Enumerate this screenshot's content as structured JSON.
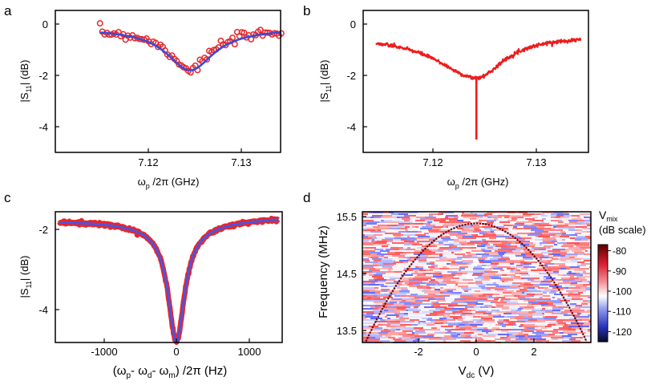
{
  "chart_data": [
    {
      "panel": "a",
      "type": "scatter",
      "xlabel": "ω_p /2π (GHz)",
      "ylabel": "|S_11| (dB)",
      "xlim": [
        7.114,
        7.135
      ],
      "ylim": [
        -5,
        0.2
      ],
      "xticks": [
        7.12,
        7.13
      ],
      "yticks": [
        0,
        -2,
        -4
      ],
      "series": [
        {
          "name": "data",
          "style": "open-circles",
          "color": "#e8262a",
          "dip_center": 7.1245,
          "depth_db": 1.6,
          "baseline_db": -0.25
        },
        {
          "name": "fit",
          "style": "line",
          "color": "#3b4bd8",
          "dip_center": 7.1245,
          "depth_db": 1.6,
          "baseline_db": -0.25
        }
      ]
    },
    {
      "panel": "b",
      "type": "line",
      "xlabel": "ω_p /2π (GHz)",
      "ylabel": "|S_11| (dB)",
      "xlim": [
        7.114,
        7.135
      ],
      "ylim": [
        -5,
        0.2
      ],
      "xticks": [
        7.12,
        7.13
      ],
      "yticks": [
        0,
        -2,
        -4
      ],
      "series": [
        {
          "name": "data",
          "color": "#ee1c1c",
          "dip_center": 7.1242,
          "broad_depth_db": 1.65,
          "baseline_db": -0.45,
          "sharp_dip_min_db": -4.5
        }
      ]
    },
    {
      "panel": "c",
      "type": "line",
      "xlabel": "(ω_p- ω_d- ω_m) /2π (Hz)",
      "ylabel": "|S_11| (dB)",
      "xlim": [
        -1700,
        1500
      ],
      "ylim": [
        -4.8,
        -1.55
      ],
      "xticks": [
        -1000,
        0,
        1000
      ],
      "yticks": [
        -2,
        -4
      ],
      "series": [
        {
          "name": "data",
          "color": "#e8262a",
          "center_hz": 0,
          "min_db": -4.55,
          "baseline_db": -1.72
        },
        {
          "name": "fit",
          "color": "#4a54e0",
          "center_hz": 0,
          "min_db": -4.55,
          "baseline_db": -1.72
        }
      ]
    },
    {
      "panel": "d",
      "type": "heatmap",
      "xlabel": "V_dc (V)",
      "ylabel": "Frequency (MHz)",
      "xlim": [
        -3.9,
        3.9
      ],
      "ylim": [
        13.25,
        15.6
      ],
      "xticks": [
        -2,
        0,
        2
      ],
      "yticks": [
        15.5,
        14.5,
        13.5
      ],
      "parabola": {
        "vertex_v": 0.0,
        "vertex_mhz": 15.38,
        "curvature": 0.142
      },
      "colorbar": {
        "title_line1": "V_mix",
        "title_line2": "(dB scale)",
        "ticks": [
          -80,
          -90,
          -100,
          -110,
          -120
        ],
        "range": [
          -125,
          -77
        ]
      }
    }
  ],
  "labels": {
    "panel_a": "a",
    "panel_b": "b",
    "panel_c": "c",
    "panel_d": "d",
    "omega": "ω",
    "sub_p": "p",
    "over_2pi_ghz": " /2π (GHz)",
    "s": "|S",
    "sub_11": "11",
    "db": "| (dB)",
    "c_x_open": "(ω",
    "c_x_mid1": "- ω",
    "sub_d": "d",
    "c_x_mid2": "- ω",
    "sub_m": "m",
    "c_x_close": ") /2π (Hz)",
    "freq_label": "Frequency (MHz)",
    "v": "V",
    "sub_dc": "dc",
    "v_unit": " (V)",
    "sub_mix": "mix",
    "db_scale": "(dB scale)"
  },
  "tick_text": {
    "a_y": [
      "0",
      "-2",
      "-4"
    ],
    "a_x": [
      "7.12",
      "7.13"
    ],
    "b_y": [
      "0",
      "-2",
      "-4"
    ],
    "b_x": [
      "7.12",
      "7.13"
    ],
    "c_y": [
      "-2",
      "-4"
    ],
    "c_x": [
      "-1000",
      "0",
      "1000"
    ],
    "d_y": [
      "15.5",
      "14.5",
      "13.5"
    ],
    "d_x": [
      "-2",
      "0",
      "2"
    ],
    "cb": [
      "-80",
      "-90",
      "-100",
      "-110",
      "-120"
    ]
  }
}
